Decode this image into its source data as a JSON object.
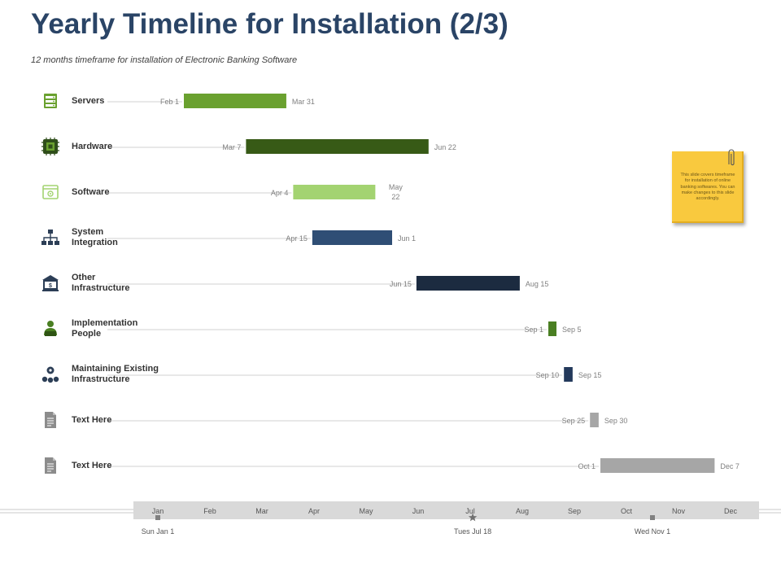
{
  "header": {
    "title": "Yearly Timeline for Installation (2/3)",
    "subtitle": "12 months timeframe for installation of Electronic Banking Software"
  },
  "note": {
    "text": "This slide covers timeframe for installation of online banking softwares. You can make changes to this slide accordingly."
  },
  "chart_data": {
    "type": "bar",
    "orientation": "horizontal-gantt",
    "year_months": [
      "Jan",
      "Feb",
      "Mar",
      "Apr",
      "May",
      "Jun",
      "Jul",
      "Aug",
      "Sep",
      "Oct",
      "Nov",
      "Dec"
    ],
    "milestones": [
      {
        "label": "Sun Jan 1",
        "date": "Jan 1",
        "marker": "square"
      },
      {
        "label": "Tues Jul 18",
        "date": "Jul 18",
        "marker": "star"
      },
      {
        "label": "Wed Nov 1",
        "date": "Nov 1",
        "marker": "square"
      }
    ],
    "tasks": [
      {
        "name": "Servers",
        "start_label": "Feb 1",
        "end_label": "Mar 31",
        "start": "Feb 1",
        "end": "Mar 31",
        "color": "#6aa12f",
        "icon": "server-icon"
      },
      {
        "name": "Hardware",
        "start_label": "Mar 7",
        "end_label": "Jun 22",
        "start": "Mar 7",
        "end": "Jun 22",
        "color": "#375a16",
        "icon": "chip-icon"
      },
      {
        "name": "Software",
        "start_label": "Apr 4",
        "end_label": "May 22",
        "start": "Apr 4",
        "end": "May 22",
        "color": "#a3d371",
        "icon": "software-window-icon"
      },
      {
        "name": "System Integration",
        "start_label": "Apr 15",
        "end_label": "Jun 1",
        "start": "Apr 15",
        "end": "Jun 1",
        "color": "#2f4e75",
        "icon": "network-icon"
      },
      {
        "name": "Other Infrastructure",
        "start_label": "Jun 15",
        "end_label": "Aug 15",
        "start": "Jun 15",
        "end": "Aug 15",
        "color": "#1c2b40",
        "icon": "bank-building-icon"
      },
      {
        "name": "Implementation People",
        "start_label": "Sep 1",
        "end_label": "Sep 5",
        "start": "Sep 1",
        "end": "Sep 5",
        "color": "#4a7f22",
        "icon": "person-laptop-icon"
      },
      {
        "name": "Maintaining Existing Infrastructure",
        "start_label": "Sep 10",
        "end_label": "Sep 15",
        "start": "Sep 10",
        "end": "Sep 15",
        "color": "#23395b",
        "icon": "gear-hierarchy-icon"
      },
      {
        "name": "Text Here",
        "start_label": "Sep 25",
        "end_label": "Sep 30",
        "start": "Sep 25",
        "end": "Sep 30",
        "color": "#a6a6a6",
        "icon": "document-icon"
      },
      {
        "name": "Text Here",
        "start_label": "Oct 1",
        "end_label": "Dec 7",
        "start": "Oct 1",
        "end": "Dec 7",
        "color": "#a6a6a6",
        "icon": "document-icon"
      }
    ]
  }
}
